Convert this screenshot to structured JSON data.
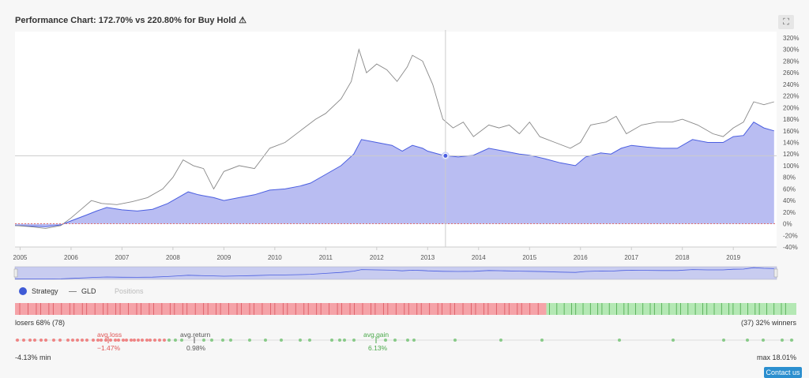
{
  "title": "Performance Chart: 172.70% vs 220.80% for Buy Hold",
  "title_icon": "warning-icon",
  "expand_icon": "fullscreen-icon",
  "colors": {
    "strategy_fill": "#b9bdf2",
    "strategy_line": "#4a5ee0",
    "gld_line": "#888888",
    "loser": "#f5a3a8",
    "winner": "#b4e8b4",
    "loser_dot": "#ef6a6a",
    "winner_dot": "#7cc57c"
  },
  "chart_data": {
    "type": "area",
    "x_ticks": [
      "2005",
      "2006",
      "2007",
      "2008",
      "2009",
      "2010",
      "2011",
      "2012",
      "2013",
      "2014",
      "2015",
      "2016",
      "2017",
      "2018",
      "2019"
    ],
    "y_ticks": [
      "320%",
      "300%",
      "280%",
      "260%",
      "240%",
      "220%",
      "200%",
      "180%",
      "160%",
      "140%",
      "120%",
      "100%",
      "80%",
      "60%",
      "40%",
      "20%",
      "0%",
      "-20%",
      "-40%"
    ],
    "ylim": [
      -40,
      320
    ],
    "series": [
      {
        "name": "Strategy",
        "points": [
          [
            2004.9,
            -3
          ],
          [
            2005.2,
            -4
          ],
          [
            2005.5,
            -5
          ],
          [
            2005.8,
            -2
          ],
          [
            2006.0,
            5
          ],
          [
            2006.3,
            15
          ],
          [
            2006.5,
            22
          ],
          [
            2006.7,
            28
          ],
          [
            2007.0,
            24
          ],
          [
            2007.3,
            22
          ],
          [
            2007.6,
            25
          ],
          [
            2007.9,
            35
          ],
          [
            2008.1,
            45
          ],
          [
            2008.3,
            55
          ],
          [
            2008.5,
            50
          ],
          [
            2008.8,
            45
          ],
          [
            2009.0,
            40
          ],
          [
            2009.3,
            45
          ],
          [
            2009.6,
            50
          ],
          [
            2009.9,
            58
          ],
          [
            2010.2,
            60
          ],
          [
            2010.5,
            65
          ],
          [
            2010.7,
            70
          ],
          [
            2011.0,
            85
          ],
          [
            2011.3,
            100
          ],
          [
            2011.55,
            120
          ],
          [
            2011.7,
            145
          ],
          [
            2012.0,
            140
          ],
          [
            2012.3,
            135
          ],
          [
            2012.5,
            125
          ],
          [
            2012.7,
            135
          ],
          [
            2012.9,
            130
          ],
          [
            2013.0,
            125
          ],
          [
            2013.3,
            118
          ],
          [
            2013.6,
            115
          ],
          [
            2013.9,
            118
          ],
          [
            2014.2,
            130
          ],
          [
            2014.5,
            125
          ],
          [
            2014.8,
            120
          ],
          [
            2015.0,
            118
          ],
          [
            2015.3,
            112
          ],
          [
            2015.6,
            105
          ],
          [
            2015.9,
            100
          ],
          [
            2016.1,
            115
          ],
          [
            2016.4,
            122
          ],
          [
            2016.6,
            120
          ],
          [
            2016.8,
            130
          ],
          [
            2017.0,
            135
          ],
          [
            2017.3,
            132
          ],
          [
            2017.6,
            130
          ],
          [
            2017.9,
            130
          ],
          [
            2018.2,
            145
          ],
          [
            2018.5,
            140
          ],
          [
            2018.8,
            140
          ],
          [
            2019.0,
            150
          ],
          [
            2019.2,
            152
          ],
          [
            2019.4,
            175
          ],
          [
            2019.6,
            165
          ],
          [
            2019.8,
            160
          ]
        ]
      },
      {
        "name": "GLD",
        "points": [
          [
            2004.9,
            -3
          ],
          [
            2005.2,
            -5
          ],
          [
            2005.5,
            -8
          ],
          [
            2005.8,
            -3
          ],
          [
            2006.0,
            10
          ],
          [
            2006.2,
            25
          ],
          [
            2006.4,
            40
          ],
          [
            2006.6,
            35
          ],
          [
            2006.9,
            33
          ],
          [
            2007.2,
            38
          ],
          [
            2007.5,
            45
          ],
          [
            2007.8,
            60
          ],
          [
            2008.0,
            80
          ],
          [
            2008.2,
            110
          ],
          [
            2008.4,
            100
          ],
          [
            2008.6,
            95
          ],
          [
            2008.8,
            60
          ],
          [
            2009.0,
            90
          ],
          [
            2009.3,
            100
          ],
          [
            2009.6,
            95
          ],
          [
            2009.9,
            130
          ],
          [
            2010.2,
            140
          ],
          [
            2010.5,
            160
          ],
          [
            2010.8,
            180
          ],
          [
            2011.0,
            190
          ],
          [
            2011.3,
            215
          ],
          [
            2011.5,
            245
          ],
          [
            2011.65,
            300
          ],
          [
            2011.8,
            260
          ],
          [
            2012.0,
            275
          ],
          [
            2012.2,
            265
          ],
          [
            2012.4,
            245
          ],
          [
            2012.6,
            270
          ],
          [
            2012.7,
            290
          ],
          [
            2012.9,
            280
          ],
          [
            2013.1,
            240
          ],
          [
            2013.3,
            180
          ],
          [
            2013.5,
            165
          ],
          [
            2013.7,
            175
          ],
          [
            2013.9,
            150
          ],
          [
            2014.2,
            170
          ],
          [
            2014.4,
            165
          ],
          [
            2014.6,
            170
          ],
          [
            2014.8,
            155
          ],
          [
            2015.0,
            175
          ],
          [
            2015.2,
            150
          ],
          [
            2015.5,
            140
          ],
          [
            2015.8,
            130
          ],
          [
            2016.0,
            140
          ],
          [
            2016.2,
            170
          ],
          [
            2016.5,
            175
          ],
          [
            2016.7,
            185
          ],
          [
            2016.9,
            155
          ],
          [
            2017.2,
            170
          ],
          [
            2017.5,
            175
          ],
          [
            2017.8,
            175
          ],
          [
            2018.0,
            180
          ],
          [
            2018.3,
            170
          ],
          [
            2018.6,
            155
          ],
          [
            2018.8,
            150
          ],
          [
            2019.0,
            165
          ],
          [
            2019.2,
            175
          ],
          [
            2019.4,
            210
          ],
          [
            2019.6,
            205
          ],
          [
            2019.8,
            210
          ]
        ]
      }
    ],
    "hover": {
      "x": 2013.35,
      "y": 117
    },
    "zero_line": 0
  },
  "legend": {
    "strategy": "Strategy",
    "gld": "GLD",
    "positions": "Positions"
  },
  "trades": {
    "losers_label": "losers 68% (78)",
    "winners_label": "(37) 32% winners",
    "loser_share": 0.68,
    "loser_count": 78,
    "winner_count": 37
  },
  "stats": {
    "avg_loss_label": "avg.loss",
    "avg_loss_value": "−1.47%",
    "avg_return_label": "avg.return",
    "avg_return_value": "0.98%",
    "avg_gain_label": "avg.gain",
    "avg_gain_value": "6.13%",
    "min_label": "-4.13% min",
    "max_label": "max 18.01%"
  },
  "contact": "Contact us"
}
